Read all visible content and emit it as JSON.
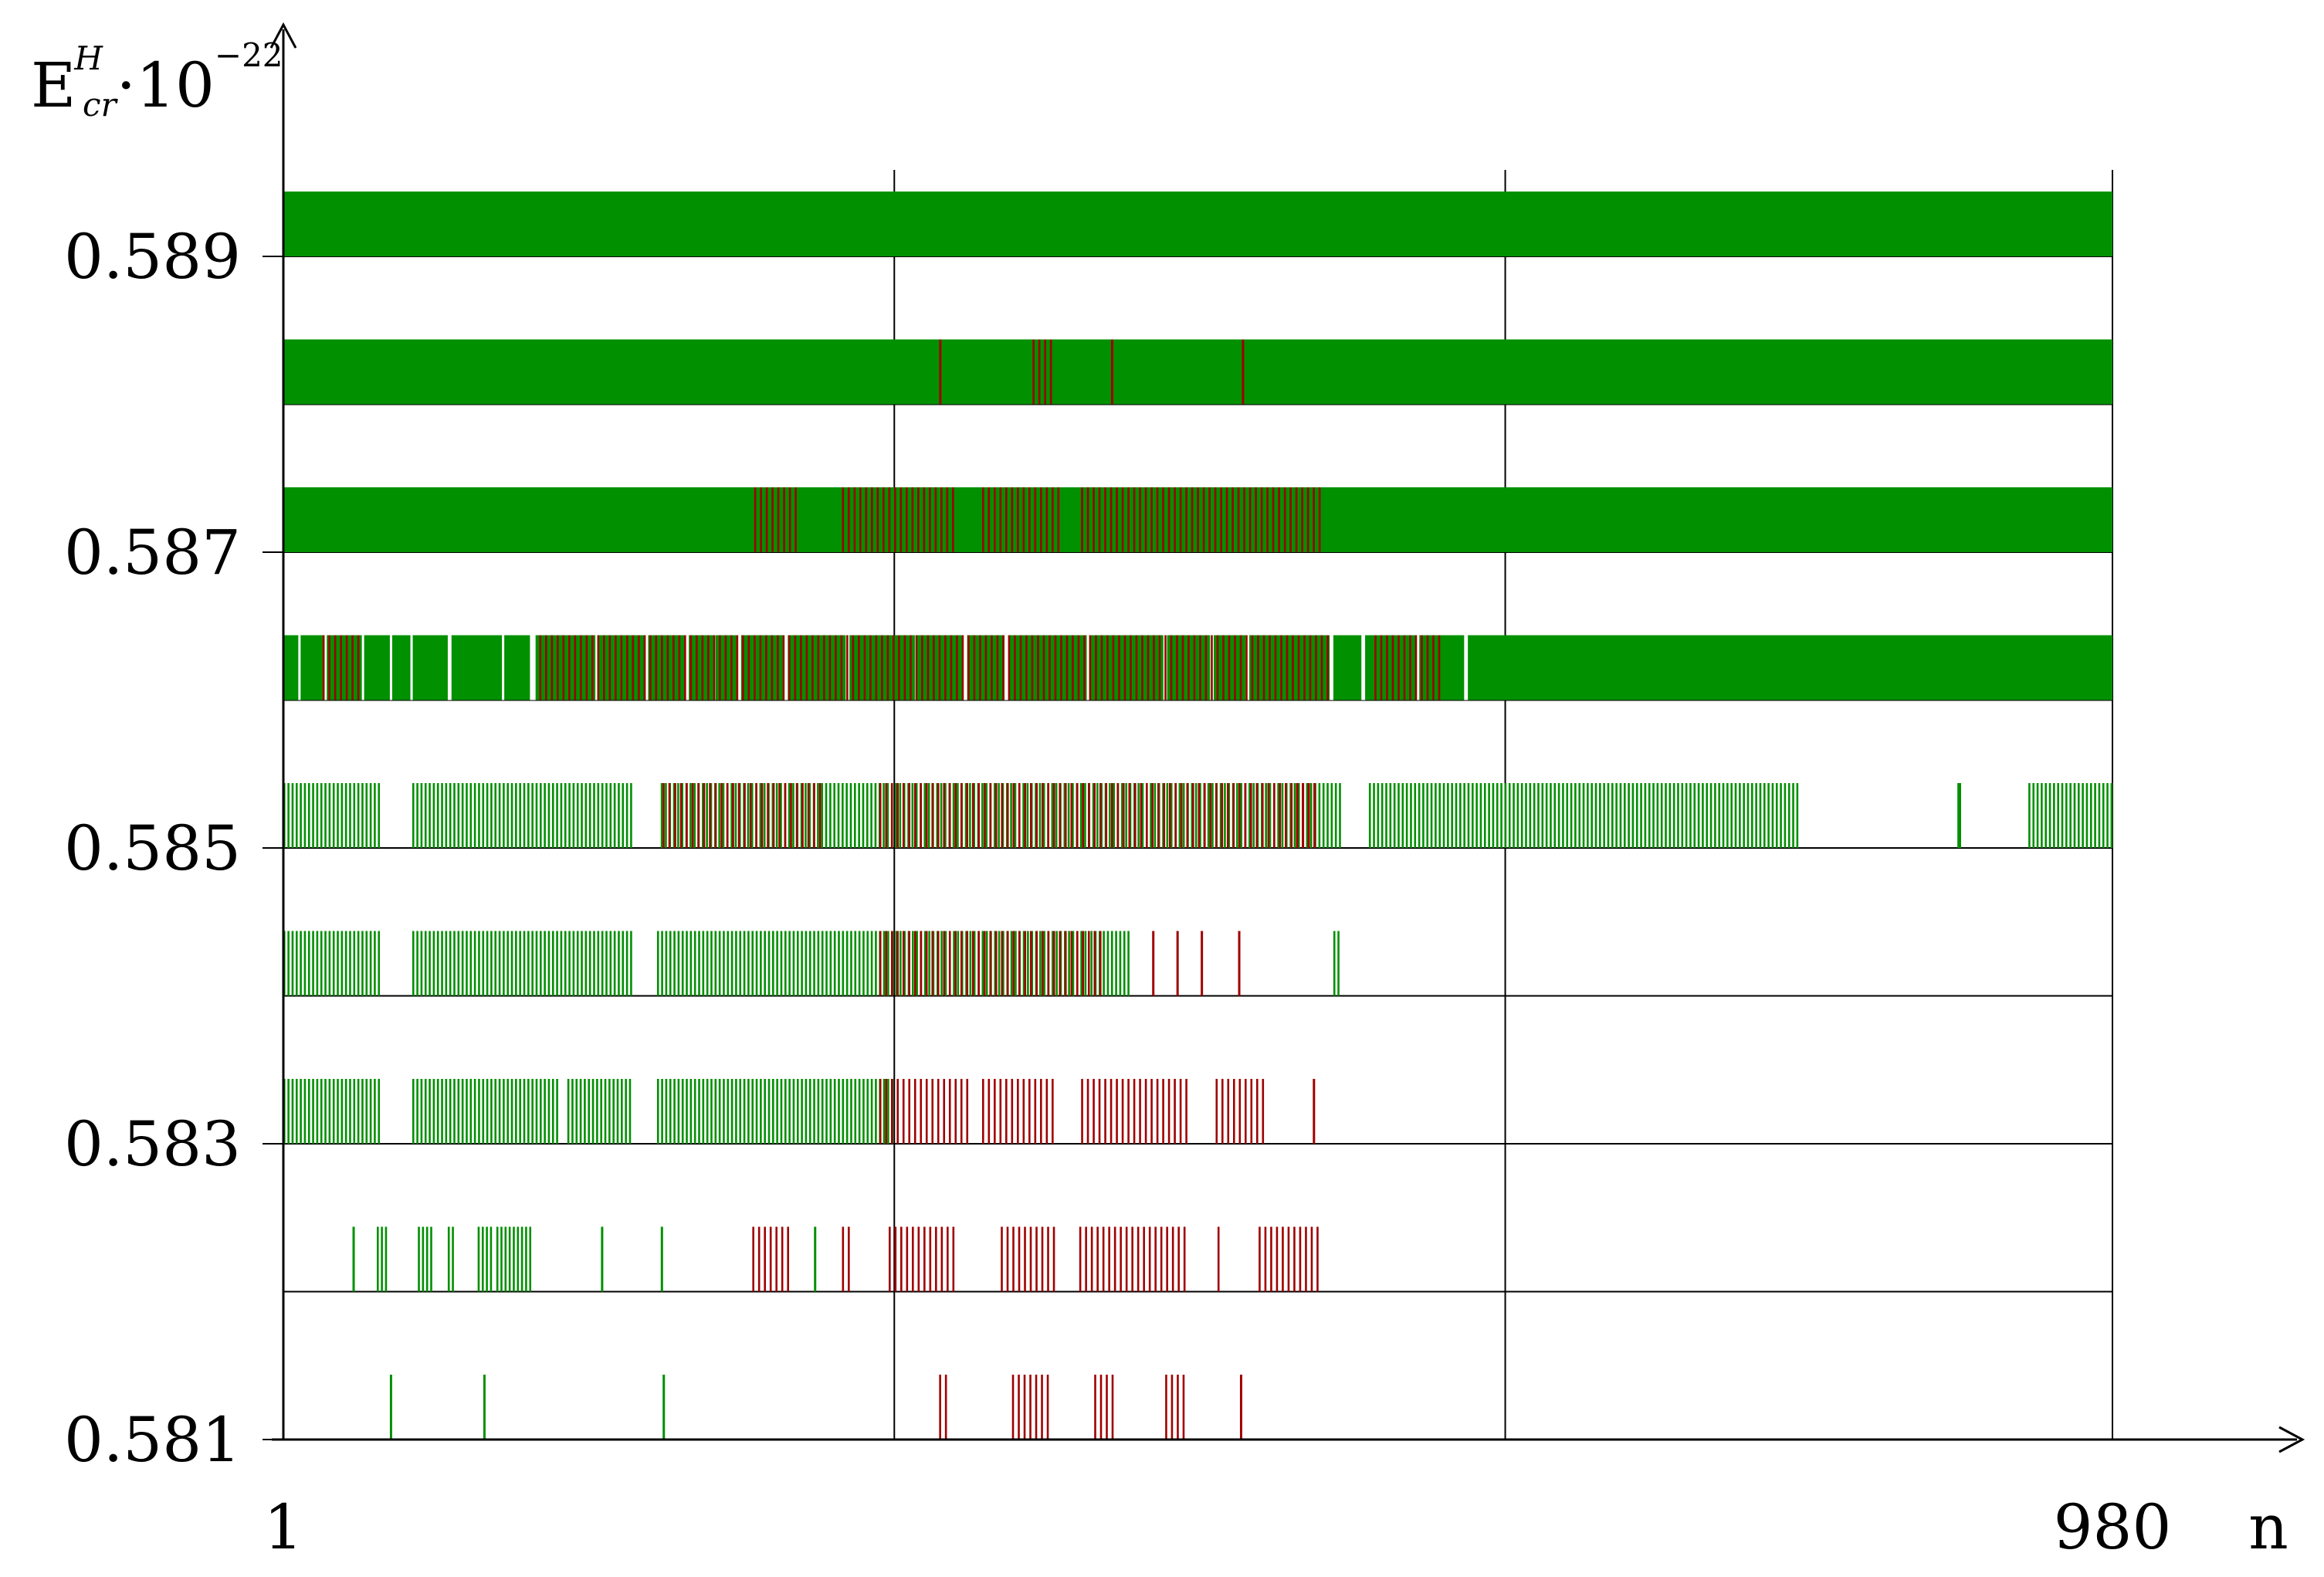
{
  "chart_data": {
    "type": "event-strip",
    "title": "",
    "xlabel": "n",
    "ylabel": {
      "base": "E",
      "superscript": "H",
      "subscript": "cr",
      "multiplier": "·10",
      "exponent": "−22"
    },
    "x_ticks": [
      "1",
      "980"
    ],
    "y_ticks": [
      "0.581",
      "0.583",
      "0.585",
      "0.587",
      "0.589"
    ],
    "xlim": [
      1,
      980
    ],
    "ylim": [
      0.581,
      0.5895
    ],
    "x_gridlines": [
      328,
      655
    ],
    "colors": {
      "green": "#009000",
      "red": "#a00000",
      "axis": "#000000"
    },
    "rows": [
      {
        "y": 0.581,
        "green": [
          [
            58,
            59
          ],
          [
            108,
            109
          ],
          [
            204,
            205
          ]
        ],
        "red": [
          [
            352,
            358
          ],
          [
            391,
            411
          ],
          [
            435,
            445
          ],
          [
            473,
            483
          ],
          [
            513,
            514
          ]
        ]
      },
      {
        "y": 0.582,
        "green": [
          [
            38,
            39
          ],
          [
            51,
            57
          ],
          [
            73,
            80
          ],
          [
            89,
            92
          ],
          [
            105,
            113
          ],
          [
            115,
            133
          ],
          [
            171,
            172
          ],
          [
            203,
            204
          ],
          [
            285,
            286
          ]
        ],
        "red": [
          [
            252,
            271
          ],
          [
            300,
            306
          ],
          [
            325,
            362
          ],
          [
            385,
            416
          ],
          [
            427,
            485
          ],
          [
            501,
            504
          ],
          [
            523,
            555
          ]
        ]
      },
      {
        "y": 0.583,
        "green": [
          [
            1,
            52
          ],
          [
            70,
            148
          ],
          [
            153,
            187
          ],
          [
            201,
            327
          ]
        ],
        "red": [
          [
            320,
            367
          ],
          [
            375,
            414
          ],
          [
            428,
            486
          ],
          [
            500,
            525
          ],
          [
            552,
            553
          ]
        ]
      },
      {
        "y": 0.584,
        "green": [
          [
            1,
            52
          ],
          [
            70,
            187
          ],
          [
            201,
            430
          ],
          [
            433,
            453
          ],
          [
            563,
            566
          ]
        ],
        "red": [
          [
            320,
            440
          ],
          [
            466,
            467
          ],
          [
            479,
            480
          ],
          [
            492,
            493
          ],
          [
            512,
            513
          ]
        ]
      },
      {
        "y": 0.585,
        "green": [
          [
            1,
            52
          ],
          [
            70,
            188
          ],
          [
            203,
            567
          ],
          [
            582,
            812
          ],
          [
            897,
            899
          ],
          [
            935,
            980
          ]
        ],
        "red": [
          [
            204,
            289
          ],
          [
            320,
            553
          ],
          [
            543,
            554
          ]
        ]
      },
      {
        "y": 0.586,
        "full_green": true,
        "gaps": [
          [
            9,
            10
          ],
          [
            23,
            24
          ],
          [
            43,
            44
          ],
          [
            58,
            59
          ],
          [
            69,
            70
          ],
          [
            89,
            91
          ],
          [
            118,
            119
          ],
          [
            133,
            136
          ],
          [
            168,
            170
          ],
          [
            195,
            196
          ],
          [
            216,
            218
          ],
          [
            231,
            232
          ],
          [
            244,
            246
          ],
          [
            269,
            271
          ],
          [
            302,
            304
          ],
          [
            339,
            340
          ],
          [
            365,
            367
          ],
          [
            387,
            389
          ],
          [
            431,
            432
          ],
          [
            472,
            474
          ],
          [
            497,
            499
          ],
          [
            516,
            518
          ],
          [
            561,
            563
          ],
          [
            578,
            580
          ],
          [
            607,
            609
          ],
          [
            633,
            635
          ]
        ],
        "red": [
          [
            22,
            42
          ],
          [
            138,
            330
          ],
          [
            330,
            560
          ],
          [
            585,
            620
          ]
        ]
      },
      {
        "y": 0.587,
        "full_green": true,
        "red": [
          [
            253,
            275
          ],
          [
            300,
            362
          ],
          [
            375,
            416
          ],
          [
            428,
            556
          ]
        ]
      },
      {
        "y": 0.588,
        "full_green": true,
        "red": [
          [
            352,
            353
          ],
          [
            402,
            413
          ],
          [
            444,
            445
          ],
          [
            514,
            515
          ]
        ]
      },
      {
        "y": 0.589,
        "full_green": true,
        "red": []
      }
    ]
  }
}
